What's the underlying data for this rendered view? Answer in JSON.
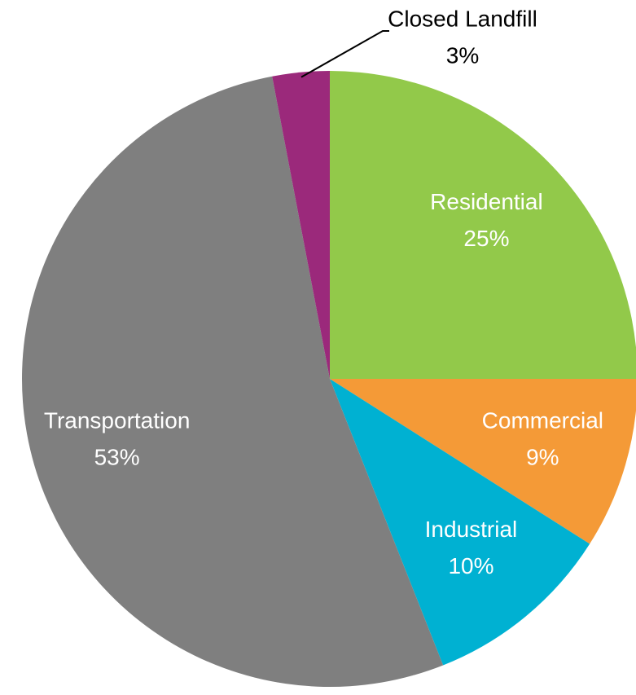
{
  "chart_data": {
    "type": "pie",
    "categories": [
      "Residential",
      "Commercial",
      "Industrial",
      "Transportation",
      "Closed Landfill"
    ],
    "values": [
      25,
      9,
      10,
      53,
      3
    ],
    "value_labels": [
      "25%",
      "9%",
      "10%",
      "53%",
      "3%"
    ],
    "colors": [
      "#92c94a",
      "#f49a37",
      "#00b1d2",
      "#7f7f7f",
      "#9b297b"
    ]
  }
}
